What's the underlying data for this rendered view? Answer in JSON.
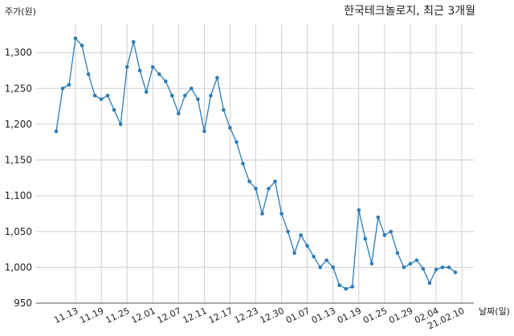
{
  "chart_data": {
    "type": "line",
    "title": "한국테크놀로지, 최근 3개월",
    "xlabel": "날짜(일)",
    "ylabel": "주가(원)",
    "ylim": [
      950,
      1340
    ],
    "grid": true,
    "line_color": "#2c7bb6",
    "yticks": [
      950,
      1000,
      1050,
      1100,
      1150,
      1200,
      1250,
      1300
    ],
    "ytick_labels": [
      "950",
      "1,000",
      "1,050",
      "1,100",
      "1,150",
      "1,200",
      "1,250",
      "1,300"
    ],
    "xtick_labels": [
      "11.13",
      "11.19",
      "11.25",
      "12.01",
      "12.07",
      "12.11",
      "12.17",
      "12.23",
      "12.30",
      "01.07",
      "01.13",
      "01.19",
      "01.25",
      "01.29",
      "02.04",
      "21.02.10"
    ],
    "xtick_index": [
      3,
      7,
      11,
      15,
      19,
      23,
      27,
      31,
      35,
      39,
      43,
      47,
      51,
      55,
      59,
      63
    ],
    "values": [
      1190,
      1250,
      1255,
      1320,
      1310,
      1270,
      1240,
      1235,
      1240,
      1220,
      1200,
      1280,
      1315,
      1275,
      1245,
      1280,
      1270,
      1260,
      1240,
      1215,
      1240,
      1250,
      1235,
      1190,
      1240,
      1265,
      1220,
      1195,
      1175,
      1145,
      1120,
      1110,
      1075,
      1110,
      1120,
      1075,
      1050,
      1020,
      1045,
      1030,
      1015,
      1000,
      1010,
      1000,
      975,
      970,
      973,
      1080,
      1040,
      1005,
      1070,
      1045,
      1050,
      1020,
      1000,
      1005,
      1010,
      998,
      978,
      997,
      1000,
      1000,
      993
    ]
  }
}
